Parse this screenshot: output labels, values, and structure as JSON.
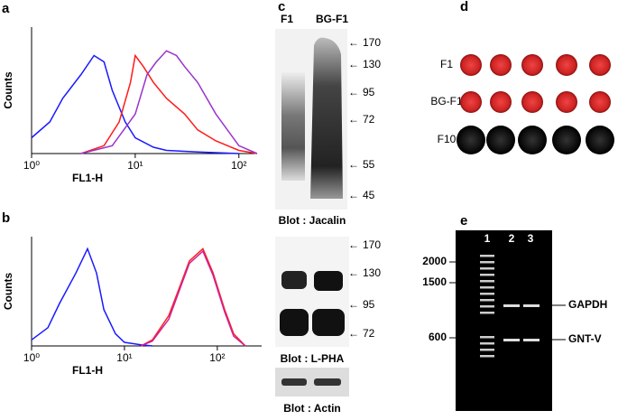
{
  "chart_data": [
    {
      "type": "line",
      "panel_label": "a",
      "y_label": "Counts",
      "x_label": "FL1-H",
      "log_x": true,
      "xlim": [
        1,
        150
      ],
      "ylim": [
        0,
        80
      ],
      "xticks": [
        {
          "value": 1,
          "label": "10⁰"
        },
        {
          "value": 10,
          "label": "10¹"
        },
        {
          "value": 100,
          "label": "10²"
        }
      ],
      "series": [
        {
          "color": "#1a1aff",
          "x": [
            1,
            1.5,
            2,
            3,
            4,
            5,
            6,
            8,
            10,
            15,
            20,
            40,
            100
          ],
          "values": [
            10,
            20,
            35,
            50,
            62,
            58,
            40,
            20,
            10,
            4,
            2,
            1,
            0
          ]
        },
        {
          "color": "#ff1a1a",
          "x": [
            3,
            5,
            7,
            9,
            10,
            12,
            15,
            20,
            30,
            40,
            60,
            100,
            150
          ],
          "values": [
            0,
            5,
            20,
            45,
            62,
            55,
            45,
            35,
            25,
            15,
            8,
            2,
            0
          ]
        },
        {
          "color": "#9933cc",
          "x": [
            3,
            6,
            10,
            13,
            16,
            20,
            25,
            30,
            40,
            60,
            100,
            150
          ],
          "values": [
            0,
            5,
            25,
            50,
            58,
            65,
            62,
            55,
            45,
            25,
            5,
            0
          ]
        }
      ]
    },
    {
      "type": "line",
      "panel_label": "b",
      "y_label": "Counts",
      "x_label": "FL1-H",
      "log_x": true,
      "xlim": [
        1,
        300
      ],
      "ylim": [
        0,
        90
      ],
      "xticks": [
        {
          "value": 1,
          "label": "10⁰"
        },
        {
          "value": 10,
          "label": "10¹"
        },
        {
          "value": 100,
          "label": "10²"
        }
      ],
      "series": [
        {
          "color": "#1a1aff",
          "x": [
            1,
            1.5,
            2,
            3,
            4,
            5,
            6,
            8,
            10,
            15,
            20
          ],
          "values": [
            5,
            15,
            35,
            60,
            80,
            60,
            30,
            10,
            3,
            1,
            0
          ]
        },
        {
          "color": "#ff2020",
          "x": [
            15,
            20,
            30,
            40,
            50,
            70,
            90,
            120,
            150,
            200
          ],
          "values": [
            0,
            5,
            25,
            50,
            70,
            80,
            60,
            30,
            10,
            0
          ]
        },
        {
          "color": "#cc2299",
          "x": [
            15,
            20,
            30,
            40,
            50,
            70,
            90,
            120,
            150,
            200
          ],
          "values": [
            0,
            4,
            22,
            48,
            68,
            78,
            58,
            28,
            8,
            0
          ]
        }
      ]
    }
  ],
  "panel_c": {
    "label": "c",
    "lanes": [
      "F1",
      "BG-F1"
    ],
    "blots": [
      {
        "markers": [
          "170",
          "130",
          "95",
          "72",
          "55",
          "45"
        ],
        "caption": "Blot : Jacalin"
      },
      {
        "markers": [
          "170",
          "130",
          "95",
          "72"
        ],
        "caption": "Blot : L-PHA"
      },
      {
        "caption": "Blot : Actin"
      }
    ]
  },
  "panel_d": {
    "label": "d",
    "rows": [
      "F1",
      "BG-F1",
      "F10"
    ]
  },
  "panel_e": {
    "label": "e",
    "lanes": [
      "1",
      "2",
      "3"
    ],
    "ladder": [
      "2000",
      "1500",
      "600"
    ],
    "bands": [
      "GAPDH",
      "GNT-V"
    ]
  }
}
